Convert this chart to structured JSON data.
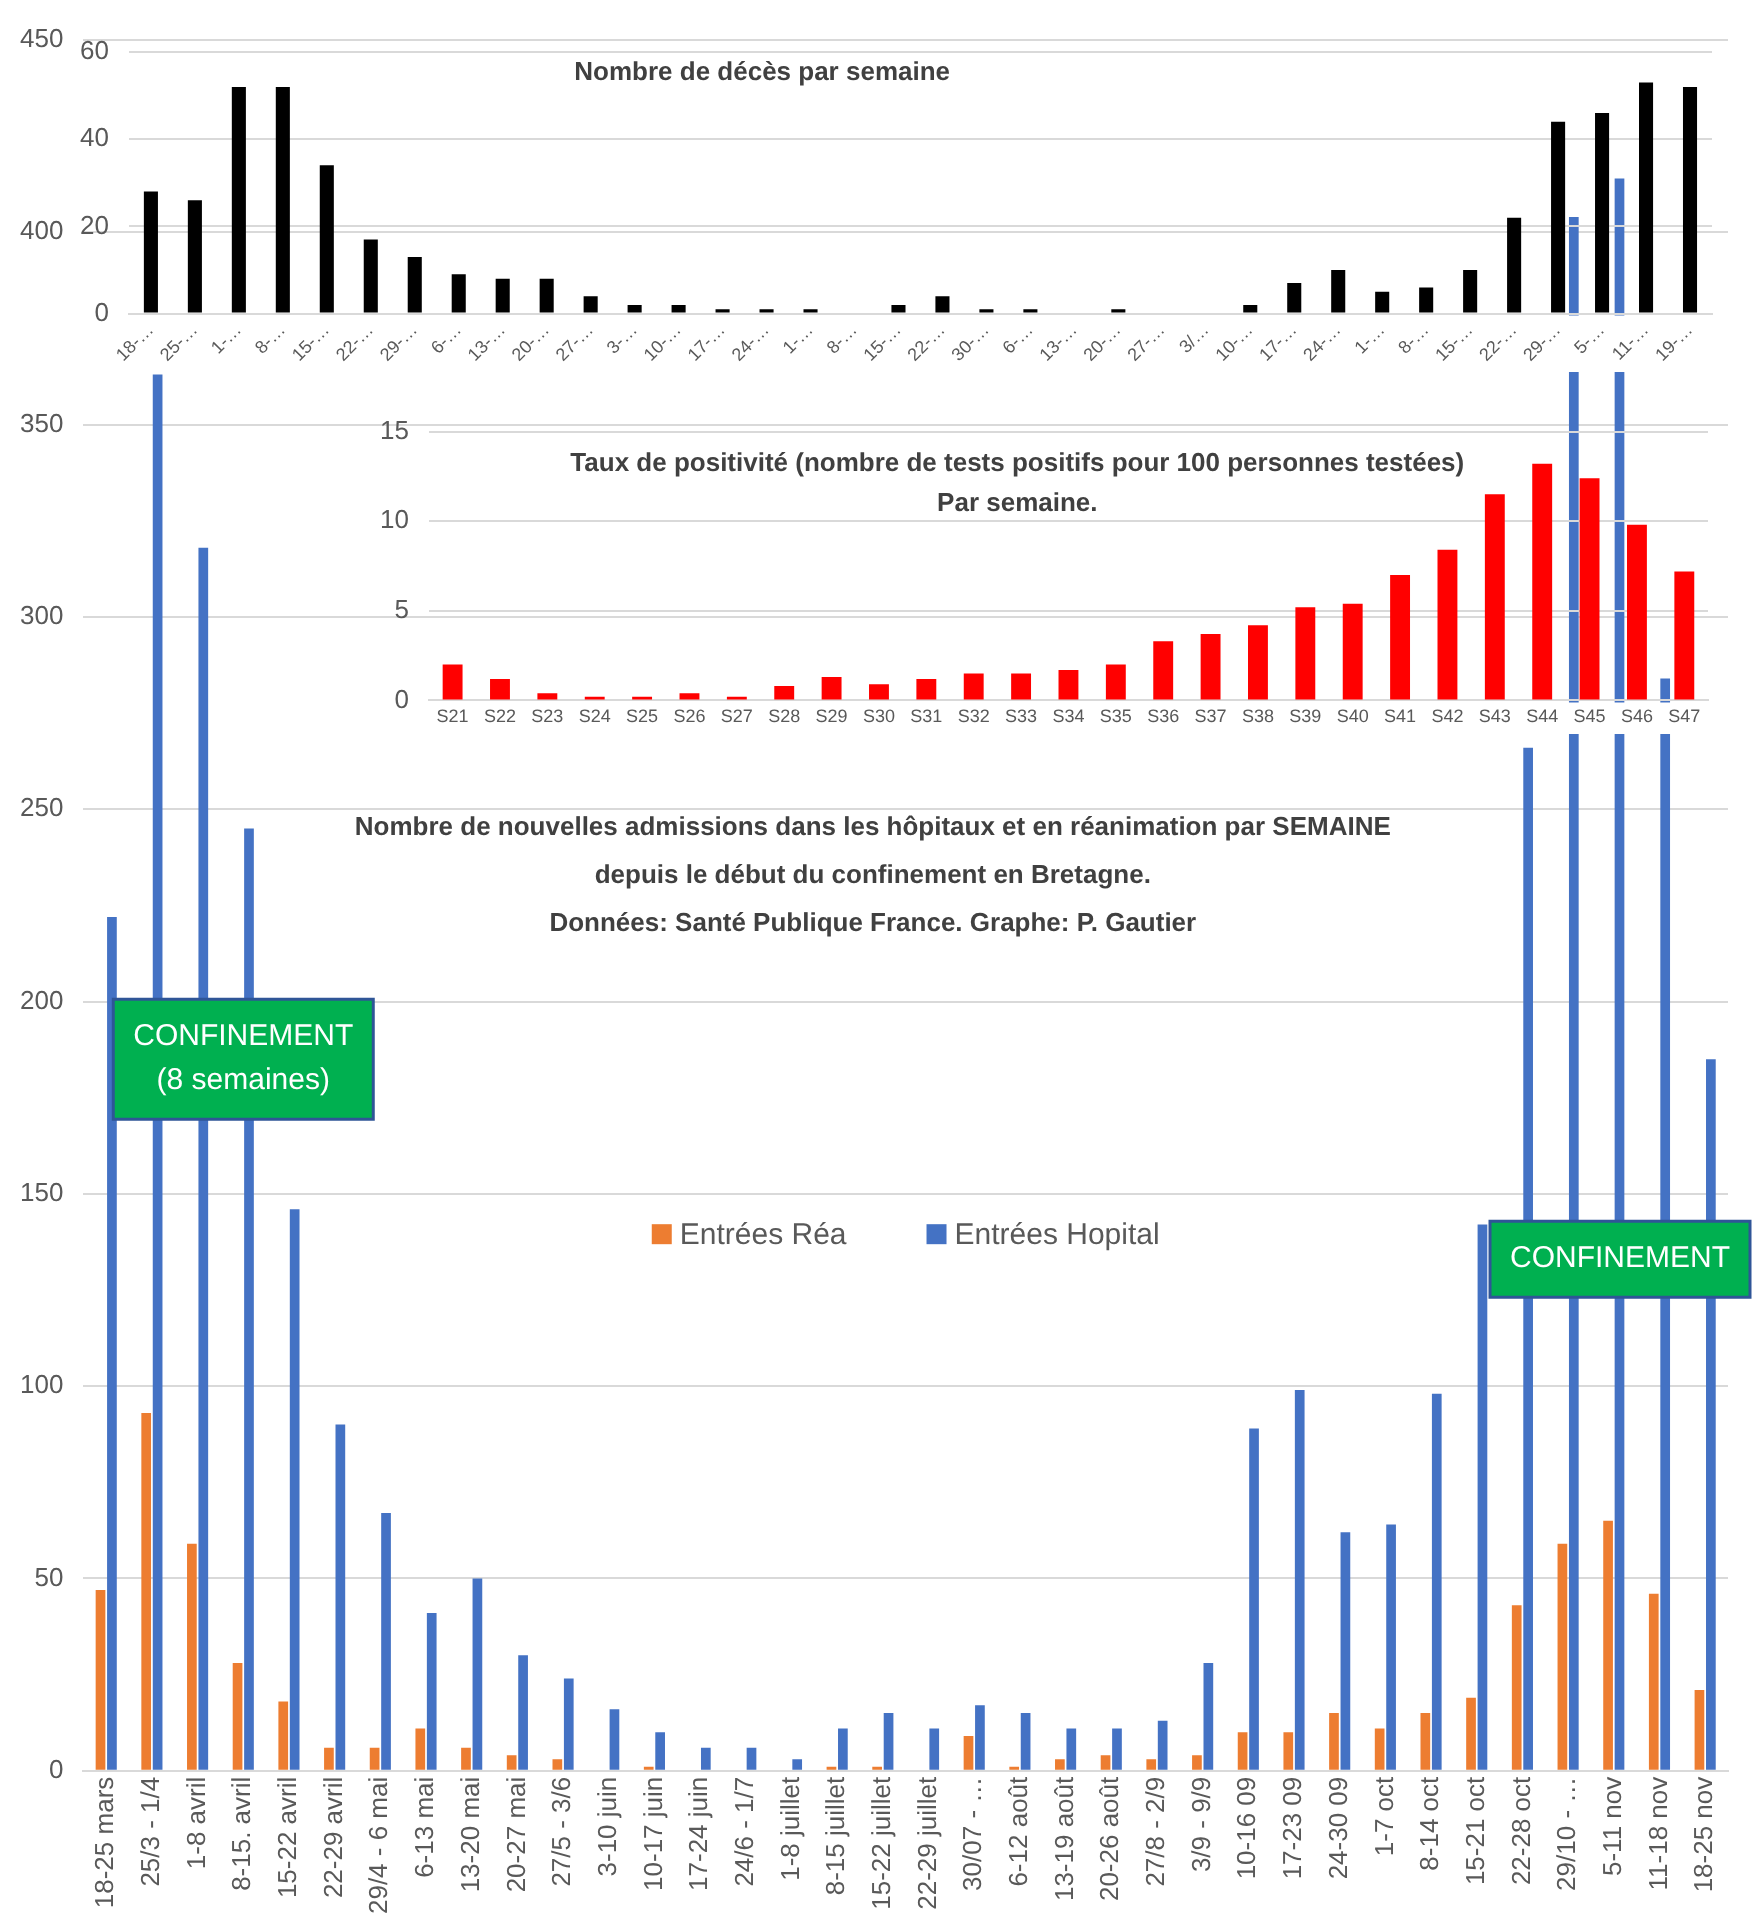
{
  "chart_data": [
    {
      "type": "bar",
      "title": "Nombre de décès par semaine",
      "categories": [
        "18-…",
        "25-…",
        "1-…",
        "8-…",
        "15-…",
        "22-…",
        "29-…",
        "6-…",
        "13-…",
        "20-…",
        "27-…",
        "3-…",
        "10-…",
        "17-…",
        "24-…",
        "1-…",
        "8-…",
        "15-…",
        "22-…",
        "30-…",
        "6-…",
        "13-…",
        "20-…",
        "27-…",
        "3/…",
        "10-…",
        "17-…",
        "24-…",
        "1-…",
        "8-…",
        "15-…",
        "22-…",
        "29-…",
        "5-…",
        "11-…",
        "19-…"
      ],
      "values": [
        28,
        26,
        52,
        52,
        34,
        17,
        13,
        9,
        8,
        8,
        4,
        2,
        2,
        1,
        1,
        1,
        0,
        2,
        4,
        1,
        1,
        0,
        1,
        0,
        0,
        2,
        7,
        10,
        5,
        6,
        10,
        22,
        44,
        46,
        53,
        52
      ],
      "color": "#000000",
      "ylim": [
        0,
        60
      ],
      "yticks": [
        0,
        20,
        40,
        60
      ],
      "grid": "y"
    },
    {
      "type": "bar",
      "title": "Taux de positivité (nombre de tests positifs pour 100 personnes testées)",
      "subtitle": "Par semaine.",
      "categories": [
        "S21",
        "S22",
        "S23",
        "S24",
        "S25",
        "S26",
        "S27",
        "S28",
        "S29",
        "S30",
        "S31",
        "S32",
        "S33",
        "S34",
        "S35",
        "S36",
        "S37",
        "S38",
        "S39",
        "S40",
        "S41",
        "S42",
        "S43",
        "S44",
        "S45",
        "S46",
        "S47"
      ],
      "values": [
        2.0,
        1.2,
        0.4,
        0.2,
        0.2,
        0.4,
        0.2,
        0.8,
        1.3,
        0.9,
        1.2,
        1.5,
        1.5,
        1.7,
        2.0,
        3.3,
        3.7,
        4.2,
        5.2,
        5.4,
        7.0,
        8.4,
        11.5,
        13.2,
        12.4,
        9.8,
        7.2
      ],
      "color": "#ff0000",
      "ylim": [
        0,
        15
      ],
      "yticks": [
        0,
        5,
        10,
        15
      ],
      "grid": "y"
    },
    {
      "type": "bar",
      "title": "Nombre de nouvelles admissions dans les hôpitaux et en réanimation par SEMAINE",
      "subtitle": "depuis le début du confinement en Bretagne.",
      "categories": [
        "18-25 mars",
        "25/3 - 1/4",
        "1-8 avril",
        "8-15. avril",
        "15-22 avril",
        "22-29 avril",
        "29/4 - 6 mai",
        "6-13 mai",
        "13-20 mai",
        "20-27 mai",
        "27/5 - 3/6",
        "3-10 juin",
        "10-17 juin",
        "17-24 juin",
        "24/6 - 1/7",
        "1-8 juillet",
        "8-15 juillet",
        "15-22 juillet",
        "22-29 juillet",
        "30/07 - …",
        "6-12 août",
        "13-19 août",
        "20-26 août",
        "27/8 - 2/9",
        "3/9 - 9/9",
        "10-16 09",
        "17-23 09",
        "24-30 09",
        "1-7 oct",
        "8-14 oct",
        "15-21 oct",
        "22-28 oct",
        "29/10 - …",
        "5-11 nov",
        "11-18 nov",
        "18-25 nov"
      ],
      "series": [
        {
          "name": "Entrées Réa",
          "color": "#ed7d31",
          "values": [
            47,
            93,
            59,
            28,
            18,
            6,
            6,
            11,
            6,
            4,
            3,
            0,
            1,
            0,
            0,
            0,
            1,
            1,
            0,
            9,
            1,
            3,
            4,
            3,
            4,
            10,
            10,
            15,
            11,
            15,
            19,
            43,
            59,
            65,
            46,
            21
          ]
        },
        {
          "name": "Entrées Hopital",
          "color": "#4472c4",
          "values": [
            222,
            363,
            318,
            245,
            146,
            90,
            67,
            41,
            50,
            30,
            24,
            16,
            10,
            6,
            6,
            3,
            11,
            15,
            11,
            17,
            15,
            11,
            11,
            13,
            28,
            89,
            99,
            62,
            64,
            98,
            142,
            266,
            404,
            414,
            284,
            185
          ]
        }
      ],
      "ylim": [
        0,
        450
      ],
      "yticks": [
        0,
        50,
        100,
        150,
        200,
        250,
        300,
        350,
        400,
        450
      ],
      "grid": "y",
      "legend": "center",
      "annotations": [
        "Données: Santé Publique France. Graphe: P. Gautier",
        {
          "text": "CONFINEMENT\n(8 semaines)",
          "x": "8-15. avril",
          "y": 185
        },
        {
          "text": "CONFINEMENT",
          "x": "18-25 nov",
          "y": 133
        }
      ]
    }
  ]
}
